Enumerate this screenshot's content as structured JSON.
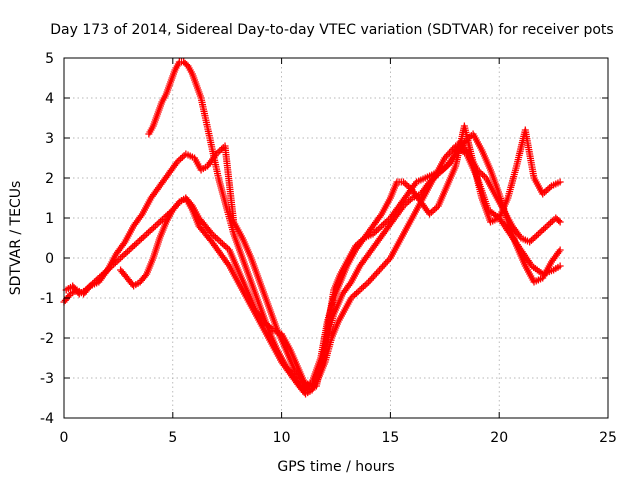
{
  "chart_data": {
    "type": "scatter",
    "title": "Day 173 of 2014, Sidereal Day-to-day VTEC variation (SDTVAR) for receiver pots",
    "xlabel": "GPS time / hours",
    "ylabel": "SDTVAR / TECUs",
    "xlim": [
      0,
      25
    ],
    "ylim": [
      -4,
      5
    ],
    "xticks": [
      0,
      5,
      10,
      15,
      20,
      25
    ],
    "yticks": [
      -4,
      -3,
      -2,
      -1,
      0,
      1,
      2,
      3,
      4,
      5
    ],
    "grid": true,
    "legend": "none",
    "marker": "+",
    "color": "#ff0000",
    "series": [
      {
        "x": [
          0.1,
          0.4,
          0.7,
          1.0,
          1.4,
          1.8,
          2.2,
          2.6,
          3.0,
          3.4,
          3.8,
          4.2,
          4.6,
          5.0,
          5.3,
          5.6,
          5.9,
          6.2,
          6.5,
          6.8,
          7.2,
          7.6,
          8.0,
          8.4,
          8.8,
          9.2,
          9.6,
          10.0,
          10.4,
          10.8,
          11.1,
          11.4,
          11.7,
          12.0,
          12.3,
          12.6,
          12.9,
          13.2,
          13.6,
          14.0,
          14.5,
          15.0,
          15.5,
          16.0,
          16.5,
          17.0,
          17.5,
          18.0,
          18.5,
          19.0,
          19.5,
          20.0,
          20.5,
          21.0,
          21.5,
          22.0,
          22.5,
          22.8
        ],
        "y": [
          -0.8,
          -0.7,
          -0.9,
          -0.8,
          -0.6,
          -0.4,
          -0.2,
          0.0,
          0.2,
          0.4,
          0.6,
          0.8,
          1.0,
          1.2,
          1.4,
          1.5,
          1.2,
          0.8,
          0.6,
          0.4,
          0.1,
          -0.2,
          -0.6,
          -1.0,
          -1.4,
          -1.8,
          -2.2,
          -2.6,
          -2.9,
          -3.2,
          -3.4,
          -3.3,
          -3.0,
          -2.6,
          -2.0,
          -1.6,
          -1.3,
          -1.0,
          -0.8,
          -0.6,
          -0.3,
          0.0,
          0.5,
          1.0,
          1.5,
          2.0,
          2.5,
          2.8,
          2.6,
          2.0,
          1.2,
          1.0,
          0.6,
          0.2,
          -0.2,
          -0.4,
          -0.3,
          -0.2
        ]
      },
      {
        "x": [
          0.0,
          0.3,
          0.6,
          0.9,
          1.2,
          1.6,
          2.0,
          2.4,
          2.8,
          3.2,
          3.6,
          4.0,
          4.4,
          4.8,
          5.2,
          5.6,
          6.0,
          6.3,
          6.6,
          7.0,
          7.4,
          7.8,
          8.2,
          8.6,
          9.0,
          9.4,
          9.8,
          10.2,
          10.6,
          11.0,
          11.4,
          11.8,
          12.1,
          12.4,
          12.7,
          13.0,
          13.4,
          13.8,
          14.2,
          14.6,
          15.0,
          15.4,
          15.8,
          16.2,
          16.6,
          17.0,
          17.4,
          17.8,
          18.2,
          18.6,
          19.0,
          19.4,
          19.8,
          20.2,
          20.6,
          21.0,
          21.4,
          21.8,
          22.2,
          22.6,
          22.8
        ],
        "y": [
          -1.1,
          -0.9,
          -0.8,
          -0.9,
          -0.7,
          -0.6,
          -0.3,
          0.1,
          0.4,
          0.8,
          1.1,
          1.5,
          1.8,
          2.1,
          2.4,
          2.6,
          2.5,
          2.2,
          2.3,
          2.6,
          2.8,
          0.9,
          0.5,
          0.0,
          -0.6,
          -1.2,
          -1.8,
          -2.3,
          -2.8,
          -3.1,
          -3.2,
          -2.8,
          -1.8,
          -0.8,
          -0.4,
          -0.1,
          0.3,
          0.5,
          0.6,
          0.8,
          1.0,
          1.3,
          1.6,
          1.9,
          2.0,
          2.1,
          2.2,
          2.4,
          2.9,
          2.6,
          2.2,
          2.0,
          1.6,
          1.2,
          0.8,
          0.5,
          0.4,
          0.6,
          0.8,
          1.0,
          0.9
        ]
      },
      {
        "x": [
          3.9,
          4.1,
          4.3,
          4.5,
          4.7,
          4.9,
          5.1,
          5.3,
          5.5,
          5.7,
          5.9,
          6.1,
          6.3,
          6.5,
          6.7,
          6.9,
          7.1,
          7.3,
          7.5,
          7.8,
          8.2,
          8.6,
          9.0,
          9.4,
          9.8,
          10.2,
          10.6,
          11.0,
          11.4,
          11.8,
          12.1,
          12.4,
          12.7,
          13.0,
          13.4,
          13.8,
          14.2,
          14.6,
          15.0,
          15.3,
          15.6,
          16.0,
          16.4,
          16.8,
          17.2,
          17.6,
          18.0,
          18.4,
          18.8,
          19.2,
          19.6,
          20.0,
          20.4,
          20.8,
          21.2,
          21.6,
          22.0,
          22.4,
          22.8
        ],
        "y": [
          3.1,
          3.3,
          3.6,
          3.9,
          4.1,
          4.4,
          4.7,
          4.9,
          4.9,
          4.8,
          4.6,
          4.3,
          4.0,
          3.5,
          3.0,
          2.5,
          2.0,
          1.6,
          1.2,
          0.6,
          0.0,
          -0.6,
          -1.2,
          -1.8,
          -2.3,
          -2.7,
          -3.0,
          -3.3,
          -3.1,
          -2.5,
          -1.6,
          -1.0,
          -0.6,
          -0.2,
          0.2,
          0.5,
          0.8,
          1.1,
          1.5,
          1.9,
          1.9,
          1.7,
          1.4,
          1.1,
          1.3,
          1.8,
          2.3,
          3.3,
          2.4,
          1.5,
          0.9,
          1.0,
          1.5,
          2.3,
          3.2,
          2.0,
          1.6,
          1.8,
          1.9
        ]
      },
      {
        "x": [
          2.6,
          2.9,
          3.2,
          3.5,
          3.8,
          4.1,
          4.4,
          4.7,
          5.0,
          5.3,
          5.6,
          5.9,
          6.2,
          6.5,
          6.8,
          7.2,
          7.6,
          8.0,
          8.4,
          8.8,
          9.2,
          9.6,
          10.0,
          10.4,
          10.8,
          11.2,
          11.6,
          12.0,
          12.4,
          12.8,
          13.2,
          13.6,
          14.0,
          14.4,
          14.8,
          15.2,
          15.6,
          16.0,
          16.4,
          16.8,
          17.2,
          17.6,
          18.0,
          18.4,
          18.8,
          19.2,
          19.6,
          20.0,
          20.4,
          20.8,
          21.2,
          21.6,
          22.0,
          22.4,
          22.8
        ],
        "y": [
          -0.3,
          -0.5,
          -0.7,
          -0.6,
          -0.4,
          0.0,
          0.5,
          0.9,
          1.2,
          1.4,
          1.5,
          1.3,
          1.0,
          0.8,
          0.6,
          0.4,
          0.2,
          -0.3,
          -0.8,
          -1.3,
          -1.6,
          -1.8,
          -1.9,
          -2.3,
          -2.8,
          -3.3,
          -3.2,
          -2.2,
          -1.4,
          -0.9,
          -0.6,
          -0.2,
          0.1,
          0.4,
          0.7,
          1.0,
          1.3,
          1.5,
          1.6,
          1.9,
          2.1,
          2.3,
          2.6,
          2.9,
          3.1,
          2.7,
          2.2,
          1.6,
          0.9,
          0.3,
          -0.2,
          -0.6,
          -0.5,
          -0.1,
          0.2
        ]
      }
    ]
  }
}
